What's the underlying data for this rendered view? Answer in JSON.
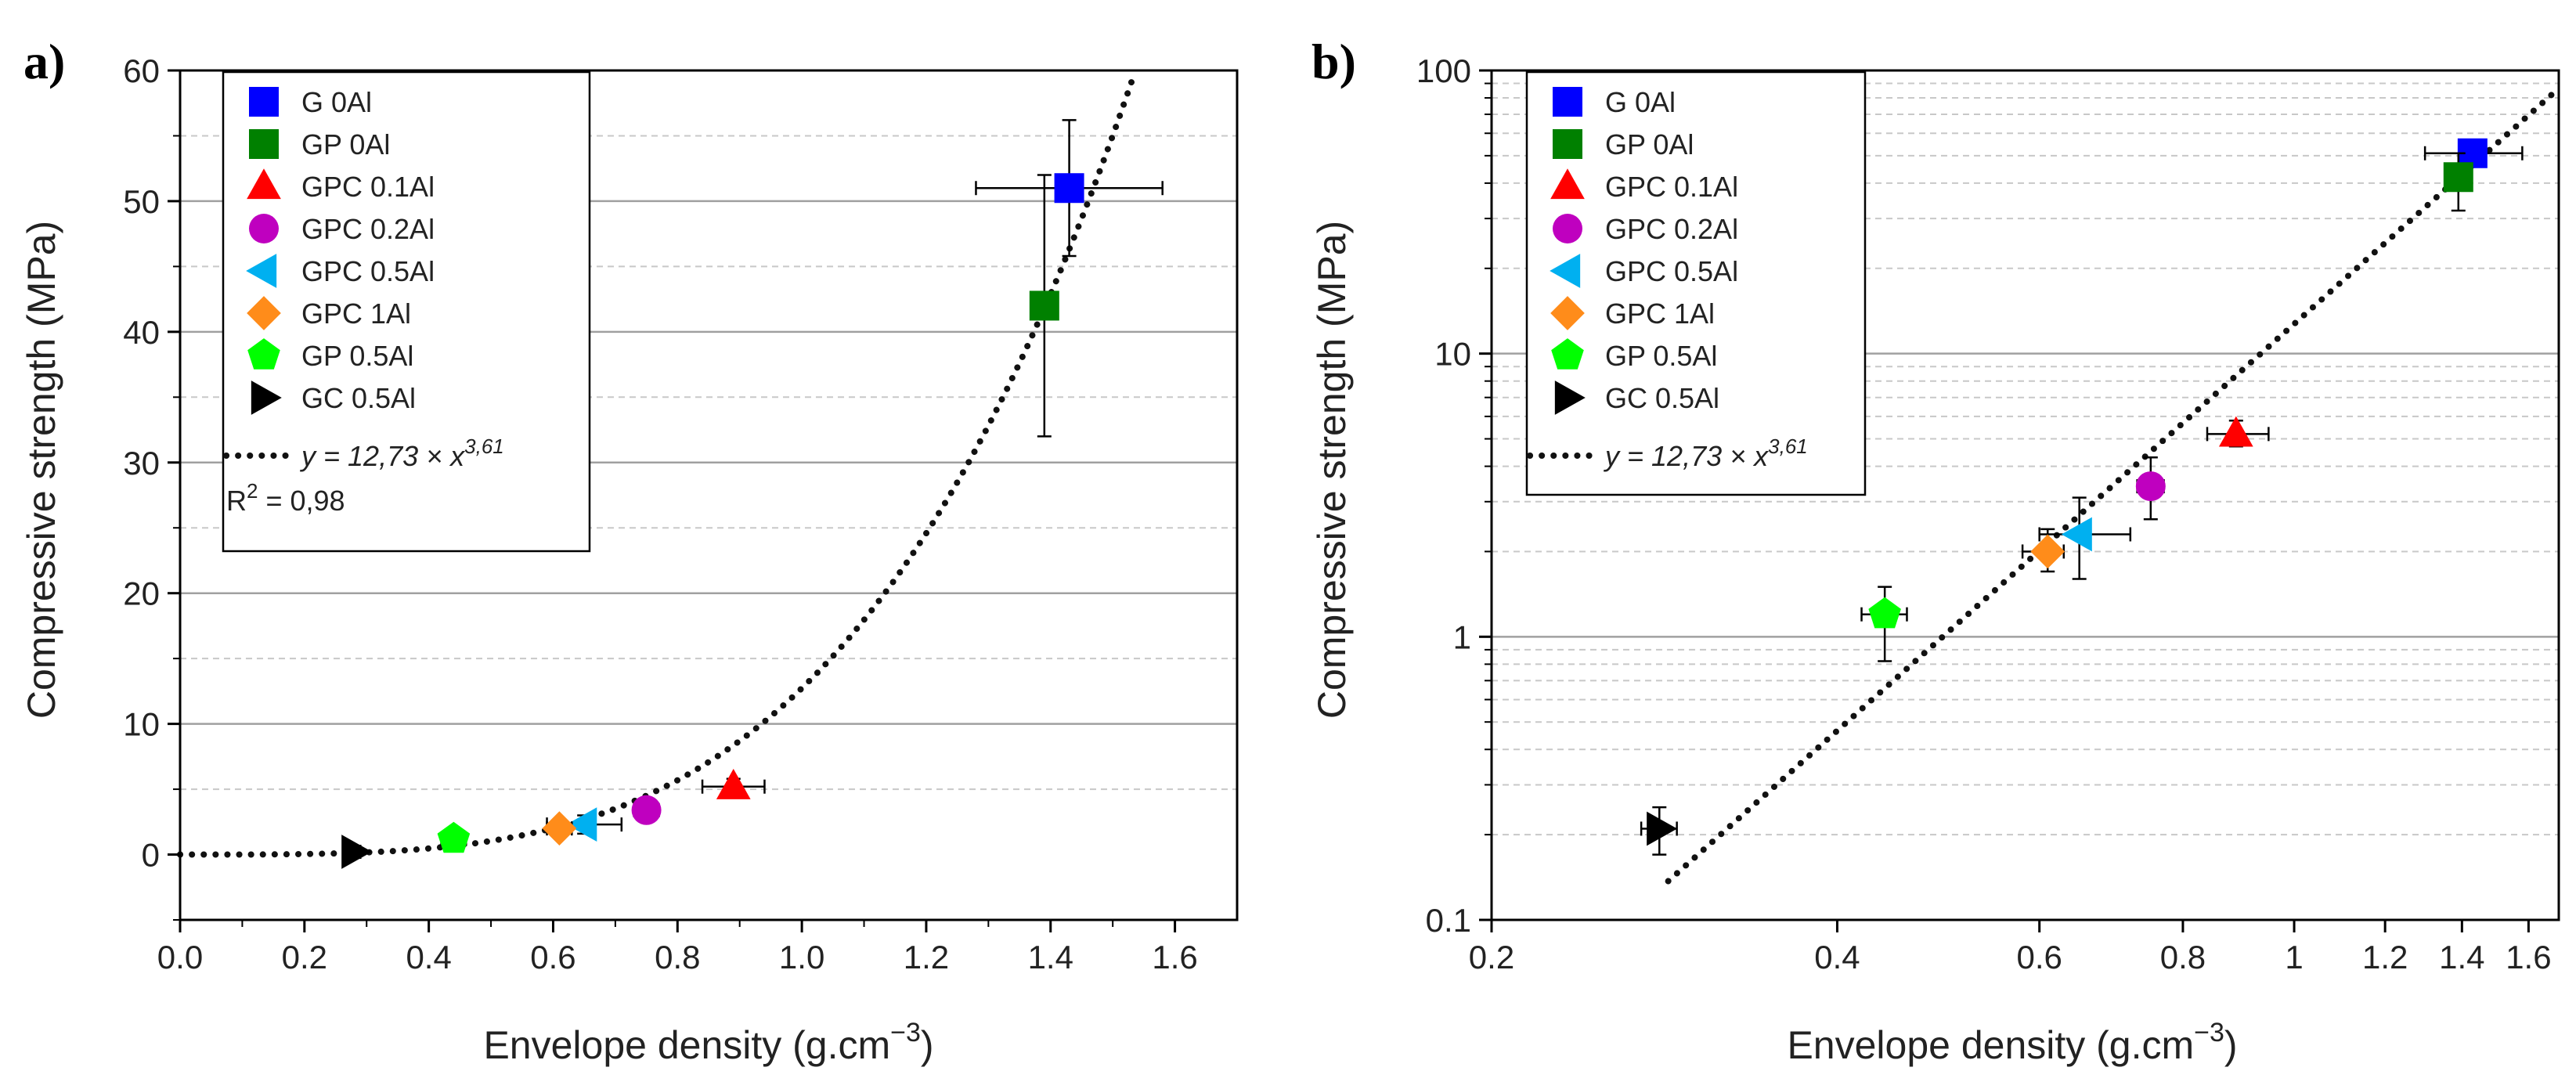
{
  "chart_data": [
    {
      "type": "scatter",
      "panel_label": "a)",
      "xscale": "linear",
      "yscale": "linear",
      "xlabel": "Envelope density (g.cm",
      "xlabel_exponent": "−3",
      "xlabel_close": ")",
      "ylabel": "Compressive strength (MPa)",
      "xlim": [
        0.0,
        1.7
      ],
      "ylim": [
        -5,
        60
      ],
      "xticks": [
        0.0,
        0.2,
        0.4,
        0.6,
        0.8,
        1.0,
        1.2,
        1.4,
        1.6
      ],
      "xtick_labels": [
        "0.0",
        "0.2",
        "0.4",
        "0.6",
        "0.8",
        "1.0",
        "1.2",
        "1.4",
        "1.6"
      ],
      "yticks": [
        0,
        10,
        20,
        30,
        40,
        50,
        60
      ],
      "ytick_labels": [
        "0",
        "10",
        "20",
        "30",
        "40",
        "50",
        "60"
      ],
      "grid_major": [
        10,
        20,
        30,
        40,
        50
      ],
      "grid_minor": [
        5,
        15,
        25,
        35,
        45,
        55
      ],
      "legend_position": "top-left",
      "fit": {
        "label_prefix": "y = 12,73 × x",
        "label_exponent": "3,61",
        "coefficient": 12.73,
        "exponent": 3.61,
        "x_range": [
          0.0,
          1.53
        ],
        "r2_label": "R",
        "r2_exponent": "2",
        "r2_value": " = 0,98"
      }
    },
    {
      "type": "scatter",
      "panel_label": "b)",
      "xscale": "log",
      "yscale": "log",
      "xlabel": "Envelope density (g.cm",
      "xlabel_exponent": "−3",
      "xlabel_close": ")",
      "ylabel": "Compressive strength (MPa)",
      "xlim": [
        0.2,
        1.7
      ],
      "ylim": [
        0.1,
        100
      ],
      "xticks": [
        0.2,
        0.4,
        0.6,
        0.8,
        1.0,
        1.2,
        1.4,
        1.6
      ],
      "xtick_labels": [
        "0.2",
        "0.4",
        "0.6",
        "0.8",
        "1",
        "1.2",
        "1.4",
        "1.6"
      ],
      "yticks": [
        0.1,
        1,
        10,
        100
      ],
      "ytick_labels": [
        "0.1",
        "1",
        "10",
        "100"
      ],
      "grid_major": [
        1,
        10
      ],
      "grid_minor": [
        0.2,
        0.3,
        0.4,
        0.5,
        0.6,
        0.7,
        0.8,
        0.9,
        2,
        3,
        4,
        5,
        6,
        7,
        8,
        9,
        20,
        30,
        40,
        50,
        60,
        70,
        80,
        90
      ],
      "legend_position": "top-left",
      "fit": {
        "label_prefix": "y = 12,73 × x",
        "label_exponent": "3,61",
        "coefficient": 12.73,
        "exponent": 3.61,
        "x_range": [
          0.285,
          1.7
        ]
      }
    }
  ],
  "series": [
    {
      "name": "G 0Al",
      "marker": "square",
      "color": "#0000ff",
      "x": 1.43,
      "y": 51.0,
      "xerr": 0.15,
      "yerr": 5.2,
      "yerr_log": [
        49.0,
        55.0
      ],
      "xerr_log": [
        1.3,
        1.58
      ]
    },
    {
      "name": "GP 0Al",
      "marker": "square",
      "color": "#008000",
      "x": 1.39,
      "y": 42.0,
      "xerr": 0.02,
      "yerr": 10.0,
      "yerr_log": [
        32.0,
        51.0
      ],
      "xerr_log": [
        1.37,
        1.41
      ]
    },
    {
      "name": "GPC 0.1Al",
      "marker": "triangle-up",
      "color": "#ff0000",
      "x": 0.89,
      "y": 5.2,
      "xerr": 0.05,
      "yerr": 0.6,
      "yerr_log": [
        4.7,
        5.8
      ],
      "xerr_log": [
        0.84,
        0.95
      ]
    },
    {
      "name": "GPC 0.2Al",
      "marker": "circle",
      "color": "#bf00bf",
      "x": 0.75,
      "y": 3.4,
      "xerr": 0.02,
      "yerr": 0.8,
      "yerr_log": [
        2.6,
        4.3
      ],
      "xerr_log": [
        0.73,
        0.77
      ]
    },
    {
      "name": "GPC 0.5Al",
      "marker": "triangle-left",
      "color": "#00b0f0",
      "x": 0.65,
      "y": 2.3,
      "xerr": 0.06,
      "yerr": 0.7,
      "yerr_log": [
        1.6,
        3.1
      ],
      "xerr_log": [
        0.6,
        0.72
      ]
    },
    {
      "name": "GPC 1Al",
      "marker": "diamond",
      "color": "#ff8c1a",
      "x": 0.61,
      "y": 2.0,
      "xerr": 0.02,
      "yerr": 0.3,
      "yerr_log": [
        1.7,
        2.4
      ],
      "xerr_log": [
        0.58,
        0.63
      ]
    },
    {
      "name": "GP 0.5Al",
      "marker": "pentagon",
      "color": "#00ff00",
      "x": 0.44,
      "y": 1.2,
      "xerr": 0.02,
      "yerr": 0.35,
      "yerr_log": [
        0.82,
        1.5
      ],
      "xerr_log": [
        0.42,
        0.46
      ]
    },
    {
      "name": "GC 0.5Al",
      "marker": "triangle-right",
      "color": "#000000",
      "x": 0.28,
      "y": 0.21,
      "xerr": 0.01,
      "yerr": 0.04,
      "yerr_log": [
        0.17,
        0.25
      ],
      "xerr_log": [
        0.27,
        0.29
      ]
    }
  ]
}
